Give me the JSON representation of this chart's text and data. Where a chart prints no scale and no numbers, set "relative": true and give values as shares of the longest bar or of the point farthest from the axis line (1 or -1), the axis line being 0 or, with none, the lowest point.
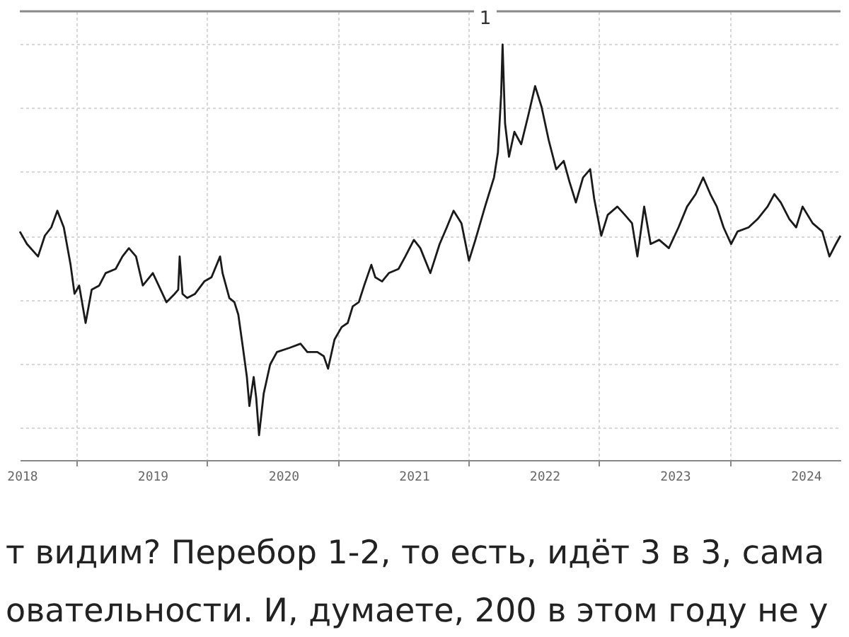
{
  "chart_data": {
    "type": "line",
    "relative": true,
    "grid": true,
    "x": [
      "2018-07-26",
      "2018-08-15",
      "2018-09-15",
      "2018-10-04",
      "2018-10-22",
      "2018-11-08",
      "2018-11-26",
      "2018-12-15",
      "2018-12-26",
      "2019-01-08",
      "2019-01-26",
      "2019-02-12",
      "2019-03-05",
      "2019-03-23",
      "2019-04-20",
      "2019-05-09",
      "2019-05-27",
      "2019-06-16",
      "2019-07-05",
      "2019-08-02",
      "2019-08-13",
      "2019-09-09",
      "2019-10-02",
      "2019-10-12",
      "2019-10-16",
      "2019-10-24",
      "2019-11-06",
      "2019-11-28",
      "2019-12-24",
      "2020-01-13",
      "2020-02-06",
      "2020-02-13",
      "2020-03-03",
      "2020-03-17",
      "2020-03-28",
      "2020-04-10",
      "2020-04-21",
      "2020-04-28",
      "2020-05-10",
      "2020-05-17",
      "2020-05-25",
      "2020-06-07",
      "2020-06-25",
      "2020-07-14",
      "2020-08-18",
      "2020-09-18",
      "2020-10-07",
      "2020-11-04",
      "2020-11-22",
      "2020-12-04",
      "2020-12-22",
      "2021-01-11",
      "2021-01-28",
      "2021-02-11",
      "2021-02-28",
      "2021-03-15",
      "2021-04-04",
      "2021-04-15",
      "2021-05-04",
      "2021-05-23",
      "2021-06-19",
      "2021-07-08",
      "2021-08-01",
      "2021-08-19",
      "2021-09-16",
      "2021-10-12",
      "2021-11-01",
      "2021-11-20",
      "2021-12-12",
      "2022-01-02",
      "2022-01-20",
      "2022-02-16",
      "2022-03-13",
      "2022-03-24",
      "2022-04-02",
      "2022-04-06",
      "2022-04-13",
      "2022-04-24",
      "2022-05-09",
      "2022-05-28",
      "2022-06-17",
      "2022-07-06",
      "2022-07-24",
      "2022-08-13",
      "2022-09-03",
      "2022-09-24",
      "2022-10-10",
      "2022-10-28",
      "2022-11-17",
      "2022-12-07",
      "2022-12-18",
      "2023-01-07",
      "2023-01-25",
      "2023-02-21",
      "2023-03-14",
      "2023-04-03",
      "2023-04-18",
      "2023-05-07",
      "2023-05-25",
      "2023-06-18",
      "2023-07-15",
      "2023-08-11",
      "2023-09-04",
      "2023-09-28",
      "2023-10-19",
      "2023-11-08",
      "2023-11-26",
      "2023-12-15",
      "2024-01-05",
      "2024-01-23",
      "2024-02-23",
      "2024-03-19",
      "2024-04-16",
      "2024-05-05",
      "2024-05-23",
      "2024-06-16",
      "2024-07-05",
      "2024-07-23",
      "2024-08-20",
      "2024-09-16",
      "2024-10-06",
      "2024-10-24",
      "2024-11-06"
    ],
    "series": [
      {
        "color": "#1a1a1a",
        "values": [
          0.55,
          0.52,
          0.49,
          0.54,
          0.56,
          0.6,
          0.56,
          0.47,
          0.4,
          0.42,
          0.33,
          0.41,
          0.42,
          0.45,
          0.46,
          0.49,
          0.51,
          0.49,
          0.42,
          0.45,
          0.43,
          0.38,
          0.4,
          0.41,
          0.49,
          0.4,
          0.39,
          0.4,
          0.43,
          0.44,
          0.49,
          0.45,
          0.39,
          0.38,
          0.35,
          0.27,
          0.2,
          0.13,
          0.2,
          0.15,
          0.06,
          0.16,
          0.23,
          0.26,
          0.27,
          0.28,
          0.26,
          0.26,
          0.25,
          0.22,
          0.29,
          0.32,
          0.33,
          0.37,
          0.38,
          0.42,
          0.47,
          0.44,
          0.43,
          0.45,
          0.46,
          0.49,
          0.53,
          0.51,
          0.45,
          0.52,
          0.56,
          0.6,
          0.57,
          0.48,
          0.53,
          0.61,
          0.68,
          0.74,
          0.88,
          1,
          0.81,
          0.73,
          0.79,
          0.76,
          0.83,
          0.9,
          0.85,
          0.77,
          0.7,
          0.72,
          0.67,
          0.62,
          0.68,
          0.7,
          0.63,
          0.54,
          0.59,
          0.61,
          0.59,
          0.57,
          0.49,
          0.61,
          0.52,
          0.53,
          0.51,
          0.56,
          0.61,
          0.64,
          0.68,
          0.64,
          0.61,
          0.56,
          0.52,
          0.55,
          0.56,
          0.58,
          0.61,
          0.64,
          0.62,
          0.58,
          0.56,
          0.61,
          0.57,
          0.55,
          0.49,
          0.52,
          0.54
        ]
      }
    ],
    "xlim": [
      "2018-07-26",
      "2024-11-06"
    ],
    "xticks": [
      {
        "value": "2018-08-01",
        "label": "2018"
      },
      {
        "value": "2019-01-01",
        "label": null
      },
      {
        "value": "2019-08-01",
        "label": "2019"
      },
      {
        "value": "2020-01-01",
        "label": null
      },
      {
        "value": "2020-08-01",
        "label": "2020"
      },
      {
        "value": "2021-01-01",
        "label": null
      },
      {
        "value": "2021-08-01",
        "label": "2021"
      },
      {
        "value": "2022-01-01",
        "label": null
      },
      {
        "value": "2022-08-01",
        "label": "2022"
      },
      {
        "value": "2023-01-01",
        "label": null
      },
      {
        "value": "2023-08-01",
        "label": "2023"
      },
      {
        "value": "2024-01-01",
        "label": null
      },
      {
        "value": "2024-08-01",
        "label": "2024"
      }
    ],
    "annotations": [
      "1",
      "т видим? Перебор 1-2, то есть, идёт 3 в 3, сама",
      "овательности. И, думаете, 200 в этом году не у"
    ]
  }
}
